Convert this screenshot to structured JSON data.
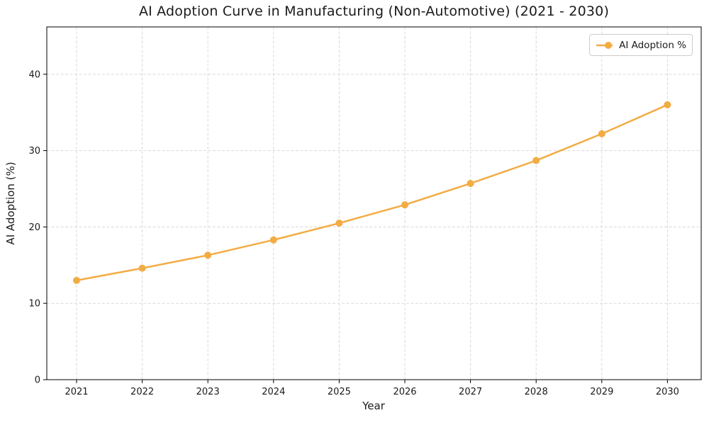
{
  "chart_data": {
    "type": "line",
    "title": "AI Adoption Curve in Manufacturing (Non-Automotive) (2021 - 2030)",
    "xlabel": "Year",
    "ylabel": "AI Adoption (%)",
    "categories": [
      "2021",
      "2022",
      "2023",
      "2024",
      "2025",
      "2026",
      "2027",
      "2028",
      "2029",
      "2030"
    ],
    "series": [
      {
        "name": "AI Adoption %",
        "values": [
          13.0,
          14.6,
          16.3,
          18.3,
          20.5,
          22.9,
          25.7,
          28.7,
          32.2,
          36.0
        ],
        "color": "#F2AC43",
        "marker": "circle"
      }
    ],
    "ylim": [
      0,
      46.2
    ],
    "yticks": [
      0,
      10,
      20,
      30,
      40
    ],
    "grid": true,
    "grid_style": "dashed",
    "legend_position": "upper right"
  },
  "colors": {
    "line": "#F2AC43",
    "grid": "#d9d9d9",
    "spine": "#000000",
    "text": "#1a1a1a",
    "legend_border": "#cccccc",
    "background": "#ffffff"
  }
}
